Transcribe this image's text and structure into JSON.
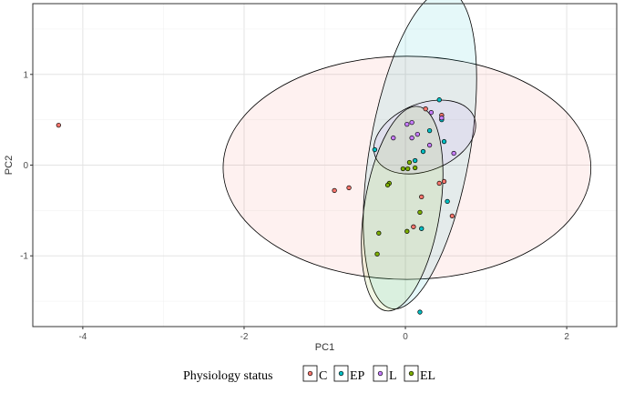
{
  "chart_data": {
    "type": "scatter",
    "title": "",
    "xlabel": "PC1",
    "ylabel": "PC2",
    "xlim": [
      -4.62,
      2.62
    ],
    "ylim": [
      -1.78,
      1.78
    ],
    "x_ticks": [
      -4,
      -2,
      0,
      2
    ],
    "y_ticks": [
      -1,
      0,
      1
    ],
    "grid": true,
    "legend": {
      "title": "Physiology status",
      "position": "bottom",
      "entries": [
        {
          "key": "C",
          "label": "C",
          "color": "#F8766D"
        },
        {
          "key": "EP",
          "label": "EP",
          "color": "#00BFC4"
        },
        {
          "key": "L",
          "label": "L",
          "color": "#C77CFF"
        },
        {
          "key": "EL",
          "label": "EL",
          "color": "#7CAE00"
        }
      ]
    },
    "ellipses": [
      {
        "group": "C",
        "cx": 0.02,
        "cy": -0.03,
        "rx": 2.28,
        "ry": 1.23,
        "fill": "#F8766D",
        "fill_opacity": 0.1
      },
      {
        "group": "EP",
        "cx": 0.18,
        "cy": 0.17,
        "rx": 0.62,
        "ry": 1.78,
        "rotation": 10,
        "fill": "#00BFC4",
        "fill_opacity": 0.1
      },
      {
        "group": "L",
        "cx": 0.24,
        "cy": 0.31,
        "rx": 0.66,
        "ry": 0.37,
        "rotation": -22,
        "fill": "#C77CFF",
        "fill_opacity": 0.1
      },
      {
        "group": "EL",
        "cx": -0.04,
        "cy": -0.48,
        "rx": 0.47,
        "ry": 1.14,
        "rotation": 9,
        "fill": "#7CAE00",
        "fill_opacity": 0.1
      }
    ],
    "series": [
      {
        "name": "C",
        "color": "#F8766D",
        "points": [
          [
            -4.3,
            0.44
          ],
          [
            -0.88,
            -0.28
          ],
          [
            -0.7,
            -0.25
          ],
          [
            0.25,
            0.62
          ],
          [
            0.45,
            0.55
          ],
          [
            0.48,
            -0.18
          ],
          [
            0.42,
            -0.2
          ],
          [
            0.58,
            -0.56
          ],
          [
            0.2,
            -0.35
          ],
          [
            0.1,
            -0.68
          ]
        ]
      },
      {
        "name": "EP",
        "color": "#00BFC4",
        "points": [
          [
            0.42,
            0.72
          ],
          [
            0.45,
            0.5
          ],
          [
            0.3,
            0.38
          ],
          [
            0.48,
            0.26
          ],
          [
            0.22,
            0.15
          ],
          [
            0.52,
            -0.4
          ],
          [
            0.2,
            -0.7
          ],
          [
            0.18,
            -1.62
          ],
          [
            -0.38,
            0.17
          ],
          [
            0.12,
            0.05
          ]
        ]
      },
      {
        "name": "L",
        "color": "#C77CFF",
        "points": [
          [
            0.45,
            0.52
          ],
          [
            0.32,
            0.58
          ],
          [
            0.02,
            0.45
          ],
          [
            0.08,
            0.47
          ],
          [
            0.08,
            0.3
          ],
          [
            0.15,
            0.34
          ],
          [
            -0.15,
            0.3
          ],
          [
            0.6,
            0.13
          ],
          [
            0.3,
            0.22
          ]
        ]
      },
      {
        "name": "EL",
        "color": "#7CAE00",
        "points": [
          [
            -0.03,
            -0.04
          ],
          [
            0.03,
            -0.04
          ],
          [
            0.05,
            0.03
          ],
          [
            0.12,
            -0.03
          ],
          [
            -0.2,
            -0.2
          ],
          [
            -0.22,
            -0.22
          ],
          [
            0.18,
            -0.52
          ],
          [
            -0.33,
            -0.75
          ],
          [
            0.02,
            -0.73
          ],
          [
            -0.35,
            -0.98
          ]
        ]
      }
    ]
  }
}
